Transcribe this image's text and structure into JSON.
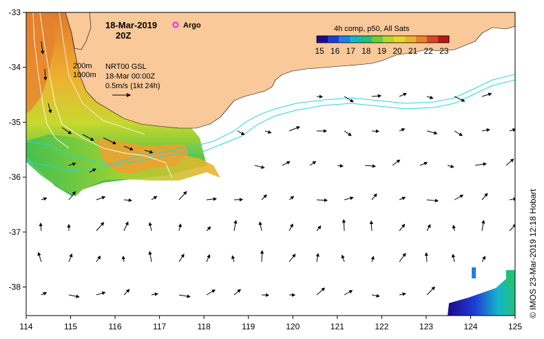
{
  "title": {
    "date": "18-Mar-2019",
    "hour": "20Z"
  },
  "argo": {
    "label": "Argo",
    "color": "#ee22ee"
  },
  "colorbar": {
    "title": "4h comp, p50, All Sats",
    "ticks": [
      "15",
      "16",
      "17",
      "18",
      "19",
      "20",
      "21",
      "22",
      "23"
    ],
    "colors": [
      "#1a0a8c",
      "#1f3bd6",
      "#1e7fe8",
      "#14b6c8",
      "#23c07a",
      "#6ccc3c",
      "#b8d82e",
      "#e8d82a",
      "#f0b030",
      "#ec8030",
      "#d84828",
      "#b81818"
    ]
  },
  "legend": {
    "contours": [
      "200m",
      "1000m"
    ],
    "product": "NRT00 GSL",
    "time": "18-Mar 00:00Z",
    "scale": "0.5m/s (1kt 24h)"
  },
  "axes": {
    "x_ticks": [
      "114",
      "115",
      "116",
      "117",
      "118",
      "119",
      "120",
      "121",
      "122",
      "123",
      "124",
      "125"
    ],
    "y_ticks": [
      "-33",
      "-34",
      "-35",
      "-36",
      "-37",
      "-38"
    ]
  },
  "credit": "© IMOS 23-Mar-2019 12:18 Hobart",
  "colors": {
    "land": "#f9c99a",
    "contour": "#22d8e0",
    "frame": "#000000"
  }
}
